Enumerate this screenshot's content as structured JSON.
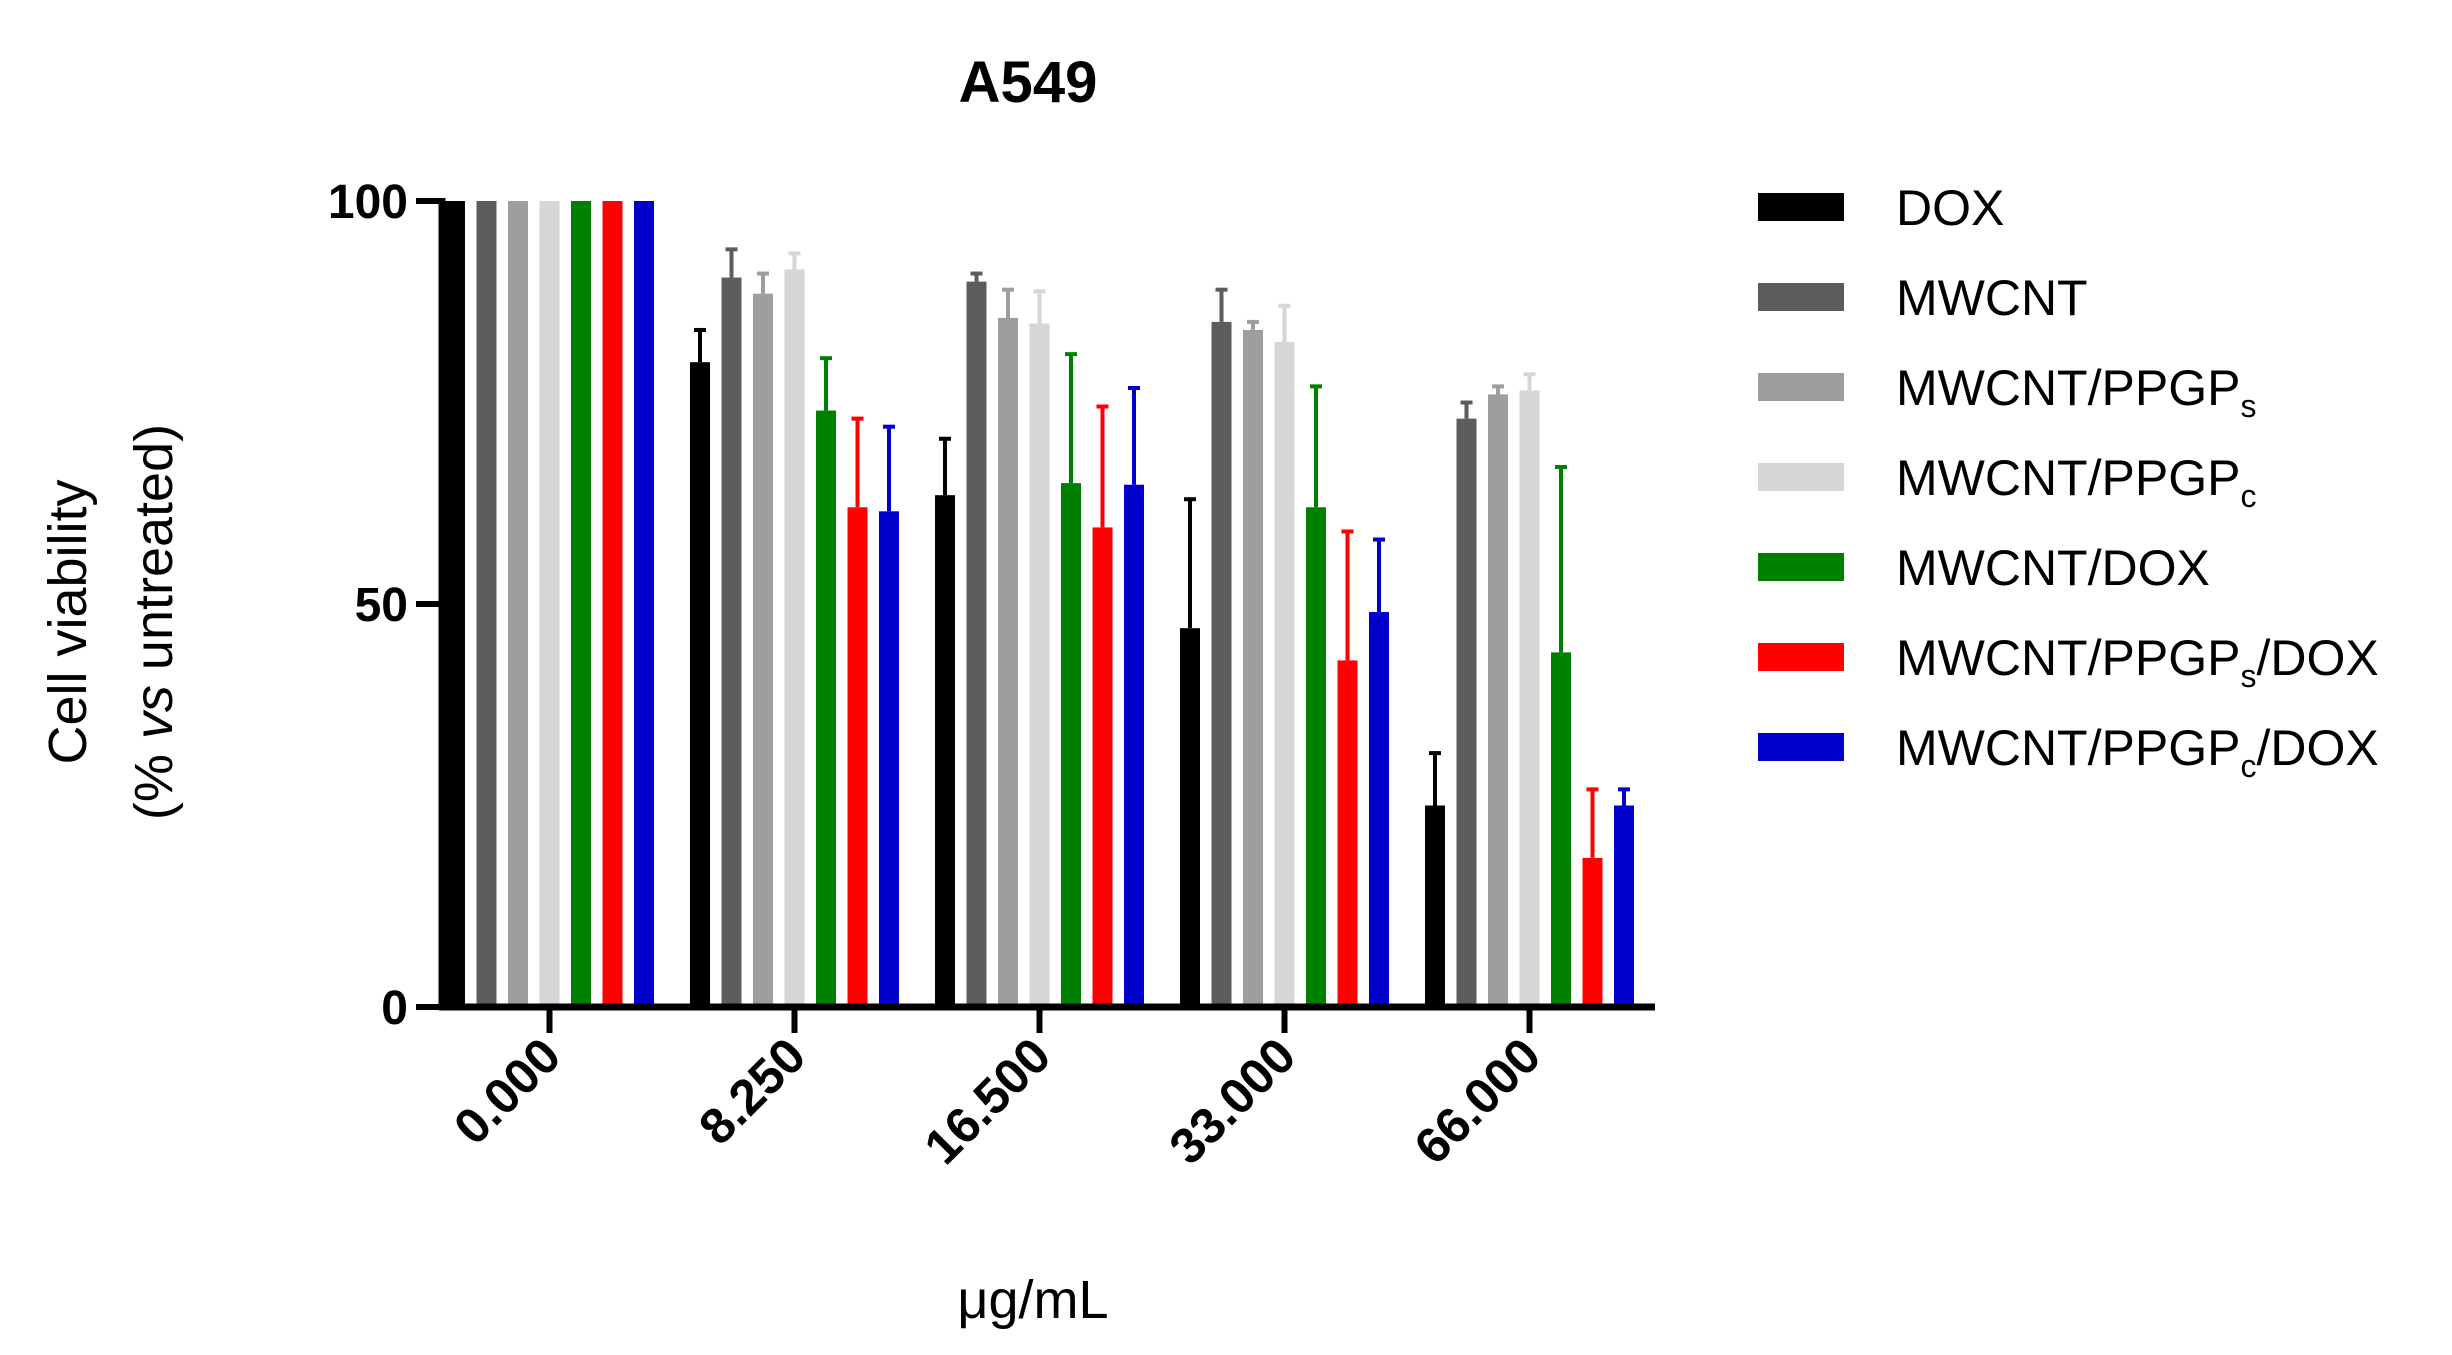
{
  "chart_data": {
    "type": "bar",
    "title": "A549",
    "xlabel": "μg/mL",
    "ylabel_line1": "Cell viability",
    "ylabel_line2_prefix": "(% ",
    "ylabel_line2_italic": "vs",
    "ylabel_line2_suffix": " untreated)",
    "ylim": [
      0,
      100
    ],
    "yticks": [
      "0",
      "50",
      "100"
    ],
    "categories": [
      "0.000",
      "8.250",
      "16.500",
      "33.000",
      "66.000"
    ],
    "legend_position": "right",
    "grid": false,
    "series": [
      {
        "name": "DOX",
        "name_base": "DOX",
        "name_sub": "",
        "name_suffix": "",
        "color": "#000000",
        "values": [
          100,
          80,
          63.5,
          47,
          25
        ],
        "errors": [
          0,
          4,
          7,
          16,
          6.5
        ]
      },
      {
        "name": "MWCNT",
        "name_base": "MWCNT",
        "name_sub": "",
        "name_suffix": "",
        "color": "#5c5c5c",
        "values": [
          100,
          90.5,
          90,
          85,
          73
        ],
        "errors": [
          0,
          3.5,
          1,
          4,
          2
        ]
      },
      {
        "name": "MWCNT/PPGPs",
        "name_base": "MWCNT/PPGP",
        "name_sub": "s",
        "name_suffix": "",
        "color": "#9e9e9e",
        "values": [
          100,
          88.5,
          85.5,
          84,
          76
        ],
        "errors": [
          0,
          2.5,
          3.5,
          1,
          1
        ]
      },
      {
        "name": "MWCNT/PPGPc",
        "name_base": "MWCNT/PPGP",
        "name_sub": "c",
        "name_suffix": "",
        "color": "#d6d6d6",
        "values": [
          100,
          91.5,
          84.8,
          82.5,
          76.5
        ],
        "errors": [
          0,
          2,
          4,
          4.5,
          2
        ]
      },
      {
        "name": "MWCNT/DOX",
        "name_base": "MWCNT/DOX",
        "name_sub": "",
        "name_suffix": "",
        "color": "#008000",
        "values": [
          100,
          74,
          65,
          62,
          44
        ],
        "errors": [
          0,
          6.5,
          16,
          15,
          23
        ]
      },
      {
        "name": "MWCNT/PPGPs/DOX",
        "name_base": "MWCNT/PPGP",
        "name_sub": "s",
        "name_suffix": "/DOX",
        "color": "#ff0000",
        "values": [
          100,
          62,
          59.5,
          43,
          18.5
        ],
        "errors": [
          0,
          11,
          15,
          16,
          8.5
        ]
      },
      {
        "name": "MWCNT/PPGPc/DOX",
        "name_base": "MWCNT/PPGP",
        "name_sub": "c",
        "name_suffix": "/DOX",
        "color": "#0000cc",
        "values": [
          100,
          61.5,
          64.8,
          49,
          25
        ],
        "errors": [
          0,
          10.5,
          12,
          9,
          2
        ]
      }
    ]
  }
}
